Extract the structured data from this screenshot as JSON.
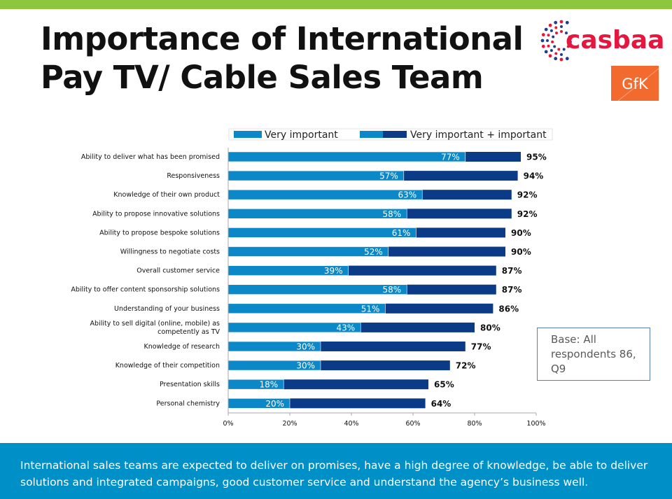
{
  "header": {
    "title_line1": "Importance of International",
    "title_line2": "Pay TV/ Cable Sales Team"
  },
  "logos": {
    "casbaa_text": "casbaa",
    "gfk_text": "GfK"
  },
  "colors": {
    "top_bar": "#8dc63f",
    "very_important": "#0c88c8",
    "very_important_plus_important": "#0b3b87",
    "footer_bg": "#0090c8",
    "casbaa_red": "#e5173f",
    "casbaa_blue": "#1e3f8f",
    "gfk_orange": "#f26a2e"
  },
  "chart_data": {
    "type": "bar",
    "orientation": "horizontal",
    "categories": [
      "Ability to deliver what has been promised",
      "Responsiveness",
      "Knowledge of their own product",
      "Ability to propose innovative solutions",
      "Ability to propose bespoke solutions",
      "Willingness to negotiate costs",
      "Overall customer service",
      "Ability to offer content sponsorship solutions",
      "Understanding of your business",
      "Ability to sell digital (online, mobile) as competently as TV",
      "Knowledge of research",
      "Knowledge of their competition",
      "Presentation skills",
      "Personal chemistry"
    ],
    "series": [
      {
        "name": "Very important",
        "values": [
          77,
          57,
          63,
          58,
          61,
          52,
          39,
          58,
          51,
          43,
          30,
          30,
          18,
          20
        ],
        "labels": [
          "77%",
          "57%",
          "63%",
          "58%",
          "61%",
          "52%",
          "39%",
          "58%",
          "51%",
          "43%",
          "30%",
          "30%",
          "18%",
          "20%"
        ]
      },
      {
        "name": "Very important + important",
        "values": [
          95,
          94,
          92,
          92,
          90,
          90,
          87,
          87,
          86,
          80,
          77,
          72,
          65,
          64
        ],
        "labels": [
          "95%",
          "94%",
          "92%",
          "92%",
          "90%",
          "90%",
          "87%",
          "87%",
          "86%",
          "80%",
          "77%",
          "72%",
          "65%",
          "64%"
        ]
      }
    ],
    "xlim": [
      0,
      100
    ],
    "x_ticks": [
      "0%",
      "20%",
      "40%",
      "60%",
      "80%",
      "100%"
    ],
    "grid": false,
    "legend_position": "top"
  },
  "base_note": "Base: All respondents 86, Q9",
  "footer": {
    "text": "International sales teams are expected to deliver on promises, have a high degree of knowledge, be able to deliver solutions and integrated campaigns, good customer service and understand the agency’s business well."
  }
}
